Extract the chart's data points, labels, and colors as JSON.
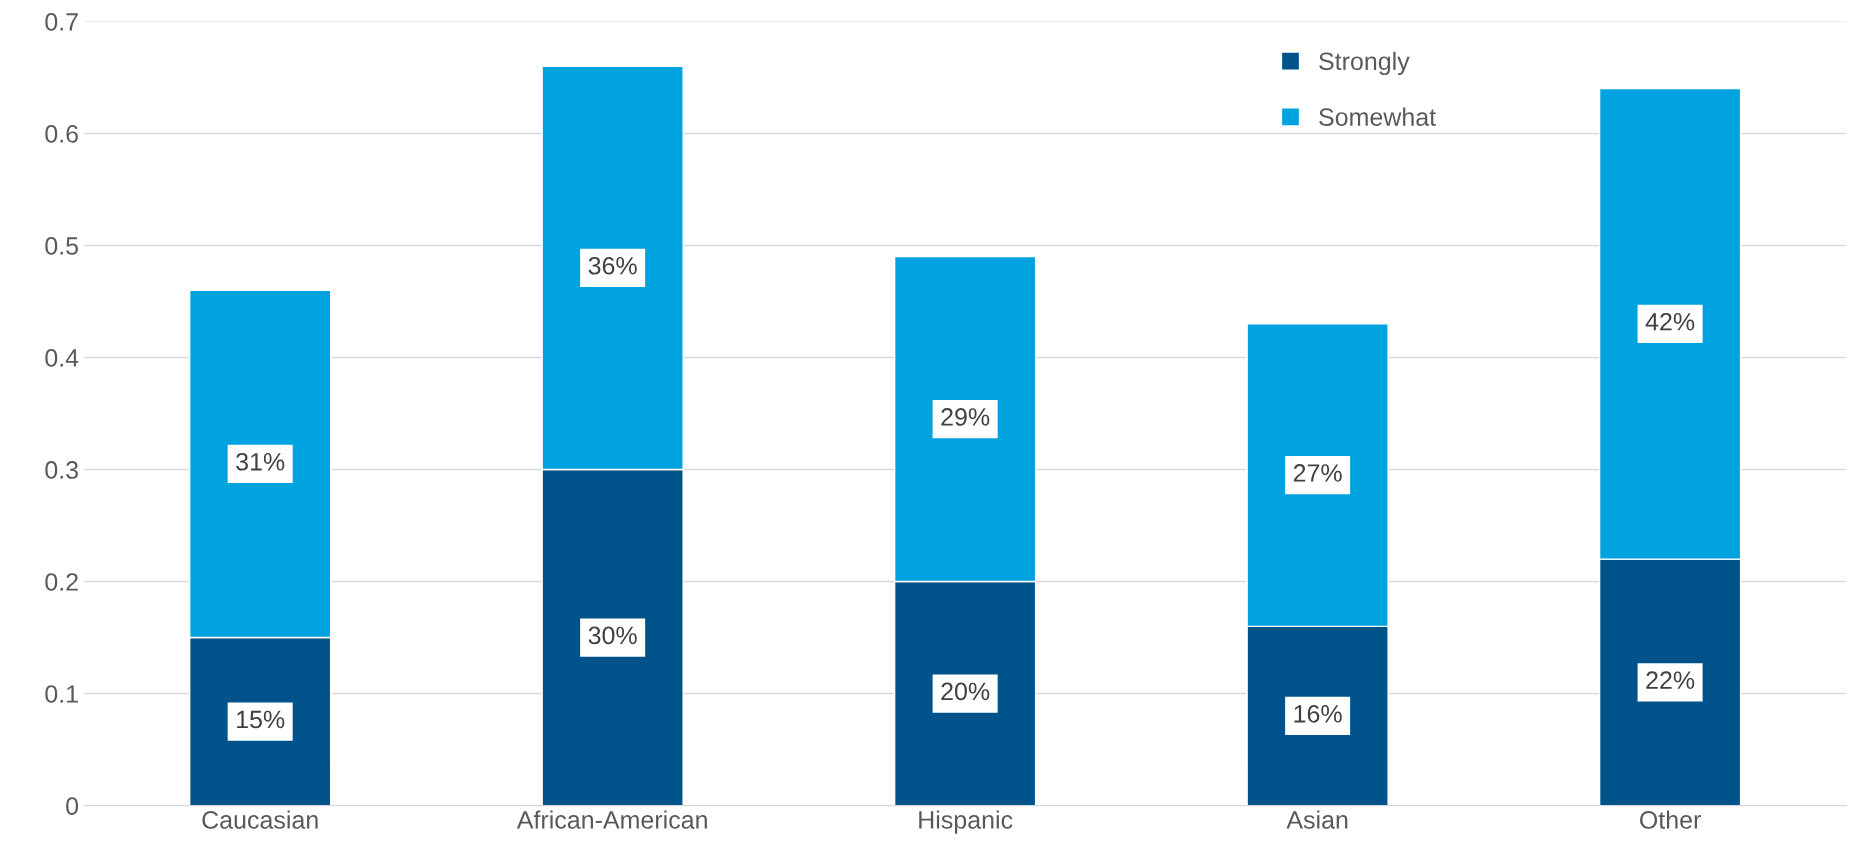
{
  "chart_data": {
    "type": "bar",
    "stacked": true,
    "categories": [
      "Caucasian",
      "African-American",
      "Hispanic",
      "Asian",
      "Other"
    ],
    "series": [
      {
        "name": "Strongly",
        "color": "#00538a",
        "values": [
          0.15,
          0.3,
          0.2,
          0.16,
          0.22
        ],
        "value_labels": [
          "15%",
          "30%",
          "20%",
          "16%",
          "22%"
        ]
      },
      {
        "name": "Somewhat",
        "color": "#00a2df",
        "values": [
          0.31,
          0.36,
          0.29,
          0.27,
          0.42
        ],
        "value_labels": [
          "31%",
          "36%",
          "29%",
          "27%",
          "42%"
        ]
      }
    ],
    "ylim": [
      0,
      0.7
    ],
    "yticks": [
      {
        "value": 0,
        "label": "0"
      },
      0.1,
      0.2,
      0.3,
      0.4,
      0.5,
      0.6,
      0.7
    ],
    "grid": "y",
    "legend": "top right"
  }
}
